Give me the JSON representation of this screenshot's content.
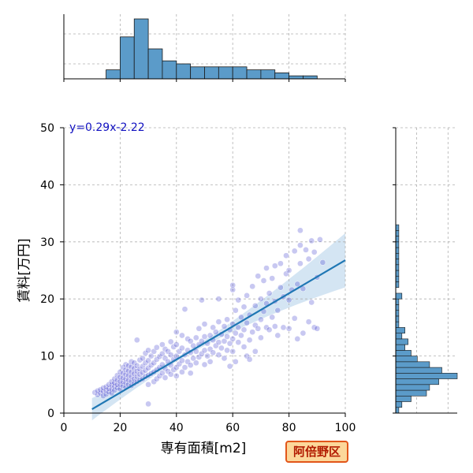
{
  "chart_data": {
    "type": "scatter",
    "xlabel": "専有面積[m2]",
    "ylabel": "賃料[万円]",
    "xlim": [
      0,
      100
    ],
    "ylim": [
      0,
      50
    ],
    "xticks": [
      0,
      20,
      40,
      60,
      80,
      100
    ],
    "yticks": [
      0,
      10,
      20,
      30,
      40,
      50
    ],
    "grid": true,
    "regression": {
      "label": "y=0.29x-2.22",
      "slope": 0.29,
      "intercept": -2.22,
      "x_range": [
        10,
        100
      ]
    },
    "badge": "阿倍野区",
    "colors": {
      "points": "#3a3acc",
      "line": "#1f77b4",
      "band": "#c6dcef",
      "hist": "#5b9bc9",
      "equation": "#1010c0",
      "badge_bg": "#fcd79a",
      "badge_border": "#e2561a"
    },
    "points": [
      [
        11,
        3.6
      ],
      [
        12,
        3.2
      ],
      [
        12,
        3.9
      ],
      [
        13,
        3.5
      ],
      [
        13,
        4.1
      ],
      [
        14,
        3.0
      ],
      [
        14,
        3.8
      ],
      [
        14,
        4.4
      ],
      [
        15,
        3.3
      ],
      [
        15,
        4.0
      ],
      [
        15,
        4.6
      ],
      [
        16,
        3.7
      ],
      [
        16,
        4.3
      ],
      [
        16,
        5.0
      ],
      [
        17,
        3.5
      ],
      [
        17,
        4.2
      ],
      [
        17,
        4.9
      ],
      [
        17,
        5.5
      ],
      [
        18,
        4.0
      ],
      [
        18,
        4.7
      ],
      [
        18,
        5.3
      ],
      [
        18,
        6.0
      ],
      [
        19,
        4.4
      ],
      [
        19,
        5.0
      ],
      [
        19,
        5.8
      ],
      [
        19,
        6.6
      ],
      [
        20,
        4.2
      ],
      [
        20,
        5.0
      ],
      [
        20,
        5.6
      ],
      [
        20,
        6.3
      ],
      [
        20,
        7.2
      ],
      [
        21,
        4.8
      ],
      [
        21,
        5.5
      ],
      [
        21,
        6.2
      ],
      [
        21,
        7.0
      ],
      [
        21,
        8.0
      ],
      [
        22,
        4.5
      ],
      [
        22,
        5.3
      ],
      [
        22,
        6.0
      ],
      [
        22,
        6.8
      ],
      [
        22,
        7.6
      ],
      [
        22,
        8.5
      ],
      [
        23,
        5.0
      ],
      [
        23,
        5.8
      ],
      [
        23,
        6.6
      ],
      [
        23,
        7.4
      ],
      [
        23,
        8.3
      ],
      [
        24,
        4.8
      ],
      [
        24,
        5.6
      ],
      [
        24,
        6.4
      ],
      [
        24,
        7.2
      ],
      [
        24,
        8.1
      ],
      [
        24,
        9.0
      ],
      [
        25,
        5.2
      ],
      [
        25,
        6.0
      ],
      [
        25,
        6.9
      ],
      [
        25,
        7.8
      ],
      [
        25,
        8.8
      ],
      [
        26,
        5.5
      ],
      [
        26,
        6.4
      ],
      [
        26,
        7.3
      ],
      [
        26,
        8.3
      ],
      [
        26,
        12.8
      ],
      [
        27,
        5.8
      ],
      [
        27,
        6.8
      ],
      [
        27,
        7.7
      ],
      [
        27,
        9.3
      ],
      [
        28,
        6.0
      ],
      [
        28,
        7.1
      ],
      [
        28,
        8.2
      ],
      [
        28,
        9.6
      ],
      [
        29,
        6.4
      ],
      [
        29,
        7.5
      ],
      [
        29,
        8.8
      ],
      [
        29,
        10.5
      ],
      [
        30,
        5.0
      ],
      [
        30,
        6.6
      ],
      [
        30,
        7.9
      ],
      [
        30,
        9.2
      ],
      [
        30,
        11.0
      ],
      [
        30,
        1.6
      ],
      [
        31,
        6.9
      ],
      [
        31,
        8.4
      ],
      [
        31,
        10.0
      ],
      [
        32,
        5.5
      ],
      [
        32,
        7.2
      ],
      [
        32,
        8.8
      ],
      [
        32,
        10.8
      ],
      [
        33,
        6.0
      ],
      [
        33,
        7.6
      ],
      [
        33,
        9.4
      ],
      [
        33,
        11.5
      ],
      [
        34,
        6.5
      ],
      [
        34,
        8.0
      ],
      [
        34,
        9.9
      ],
      [
        35,
        7.0
      ],
      [
        35,
        8.5
      ],
      [
        35,
        10.4
      ],
      [
        35,
        12.0
      ],
      [
        36,
        6.2
      ],
      [
        36,
        7.8
      ],
      [
        36,
        9.6
      ],
      [
        36,
        11.2
      ],
      [
        37,
        7.3
      ],
      [
        37,
        9.0
      ],
      [
        37,
        10.8
      ],
      [
        38,
        6.8
      ],
      [
        38,
        8.4
      ],
      [
        38,
        10.2
      ],
      [
        38,
        12.5
      ],
      [
        39,
        7.6
      ],
      [
        39,
        9.4
      ],
      [
        39,
        11.6
      ],
      [
        40,
        6.5
      ],
      [
        40,
        8.0
      ],
      [
        40,
        10.0
      ],
      [
        40,
        12.0
      ],
      [
        40,
        14.2
      ],
      [
        41,
        8.6
      ],
      [
        41,
        10.8
      ],
      [
        42,
        7.2
      ],
      [
        42,
        9.2
      ],
      [
        42,
        11.4
      ],
      [
        42,
        13.6
      ],
      [
        43,
        8.0
      ],
      [
        43,
        10.2
      ],
      [
        43,
        18.2
      ],
      [
        44,
        9.0
      ],
      [
        44,
        11.0
      ],
      [
        44,
        13.0
      ],
      [
        45,
        8.4
      ],
      [
        45,
        10.6
      ],
      [
        45,
        12.6
      ],
      [
        45,
        7.0
      ],
      [
        46,
        9.6
      ],
      [
        46,
        11.8
      ],
      [
        47,
        8.8
      ],
      [
        47,
        10.8
      ],
      [
        47,
        13.2
      ],
      [
        48,
        9.8
      ],
      [
        48,
        12.0
      ],
      [
        48,
        14.8
      ],
      [
        49,
        10.4
      ],
      [
        49,
        12.6
      ],
      [
        49,
        19.8
      ],
      [
        50,
        8.5
      ],
      [
        50,
        11.0
      ],
      [
        50,
        13.4
      ],
      [
        50,
        15.6
      ],
      [
        51,
        10.0
      ],
      [
        51,
        12.2
      ],
      [
        52,
        11.2
      ],
      [
        52,
        13.6
      ],
      [
        52,
        9.0
      ],
      [
        53,
        10.6
      ],
      [
        53,
        12.8
      ],
      [
        53,
        15.0
      ],
      [
        54,
        11.8
      ],
      [
        54,
        14.2
      ],
      [
        55,
        10.2
      ],
      [
        55,
        12.4
      ],
      [
        55,
        16.0
      ],
      [
        56,
        11.4
      ],
      [
        56,
        13.8
      ],
      [
        57,
        12.6
      ],
      [
        57,
        15.2
      ],
      [
        58,
        11.0
      ],
      [
        58,
        13.4
      ],
      [
        58,
        16.4
      ],
      [
        59,
        12.2
      ],
      [
        59,
        14.6
      ],
      [
        60,
        10.8
      ],
      [
        60,
        13.0
      ],
      [
        60,
        15.6
      ],
      [
        60,
        21.6
      ],
      [
        60,
        22.4
      ],
      [
        61,
        14.0
      ],
      [
        61,
        18.0
      ],
      [
        62,
        12.4
      ],
      [
        62,
        15.0
      ],
      [
        62,
        19.8
      ],
      [
        63,
        13.6
      ],
      [
        63,
        16.8
      ],
      [
        64,
        11.6
      ],
      [
        64,
        14.6
      ],
      [
        64,
        18.6
      ],
      [
        65,
        15.8
      ],
      [
        65,
        20.6
      ],
      [
        66,
        12.8
      ],
      [
        66,
        17.2
      ],
      [
        67,
        14.2
      ],
      [
        67,
        22.2
      ],
      [
        68,
        15.4
      ],
      [
        68,
        18.8
      ],
      [
        69,
        14.8
      ],
      [
        69,
        24.0
      ],
      [
        70,
        13.2
      ],
      [
        70,
        16.4
      ],
      [
        70,
        20.0
      ],
      [
        71,
        17.8
      ],
      [
        71,
        23.2
      ],
      [
        72,
        15.0
      ],
      [
        72,
        19.2
      ],
      [
        72,
        25.4
      ],
      [
        73,
        14.6
      ],
      [
        73,
        21.0
      ],
      [
        74,
        16.8
      ],
      [
        74,
        23.6
      ],
      [
        75,
        15.2
      ],
      [
        75,
        19.6
      ],
      [
        75,
        25.8
      ],
      [
        76,
        13.6
      ],
      [
        76,
        18.0
      ],
      [
        77,
        22.0
      ],
      [
        77,
        26.2
      ],
      [
        78,
        15.0
      ],
      [
        78,
        20.4
      ],
      [
        79,
        24.4
      ],
      [
        79,
        27.6
      ],
      [
        80,
        14.8
      ],
      [
        80,
        19.8
      ],
      [
        80,
        25.0
      ],
      [
        81,
        21.6
      ],
      [
        82,
        16.6
      ],
      [
        82,
        28.4
      ],
      [
        83,
        13.0
      ],
      [
        83,
        22.6
      ],
      [
        84,
        29.4
      ],
      [
        84,
        26.2
      ],
      [
        85,
        14.0
      ],
      [
        85,
        21.8
      ],
      [
        86,
        28.6
      ],
      [
        87,
        16.0
      ],
      [
        87,
        27.0
      ],
      [
        88,
        19.4
      ],
      [
        88,
        30.2
      ],
      [
        89,
        15.0
      ],
      [
        89,
        28.2
      ],
      [
        90,
        23.8
      ],
      [
        90,
        14.8
      ],
      [
        91,
        30.4
      ],
      [
        92,
        26.4
      ],
      [
        84,
        32.0
      ],
      [
        65,
        10.0
      ],
      [
        66,
        9.4
      ],
      [
        68,
        10.8
      ],
      [
        55,
        20.0
      ],
      [
        59,
        8.2
      ],
      [
        61,
        9.0
      ],
      [
        57,
        9.6
      ]
    ],
    "hist_x": {
      "bin_edges": [
        0,
        5,
        10,
        15,
        20,
        25,
        30,
        35,
        40,
        45,
        50,
        55,
        60,
        65,
        70,
        75,
        80,
        85,
        90,
        95,
        100
      ],
      "counts": [
        0,
        0,
        0,
        3,
        14,
        20,
        10,
        6,
        5,
        4,
        4,
        4,
        4,
        3,
        3,
        2,
        1,
        1,
        0,
        0
      ]
    },
    "hist_y": {
      "bin_edges": [
        0,
        1,
        2,
        3,
        4,
        5,
        6,
        7,
        8,
        9,
        10,
        11,
        12,
        13,
        14,
        15,
        16,
        17,
        18,
        19,
        20,
        21,
        22,
        23,
        24,
        25,
        26,
        27,
        28,
        29,
        30,
        31,
        32,
        33,
        34,
        35,
        36,
        37,
        38,
        39,
        40
      ],
      "counts": [
        1,
        2,
        5,
        10,
        11,
        14,
        20,
        15,
        11,
        7,
        5,
        3,
        4,
        2,
        3,
        1,
        1,
        1,
        1,
        1,
        2,
        0,
        1,
        1,
        1,
        1,
        1,
        1,
        1,
        1,
        1,
        1,
        1,
        0,
        0,
        0,
        0,
        0,
        0,
        0
      ]
    }
  }
}
